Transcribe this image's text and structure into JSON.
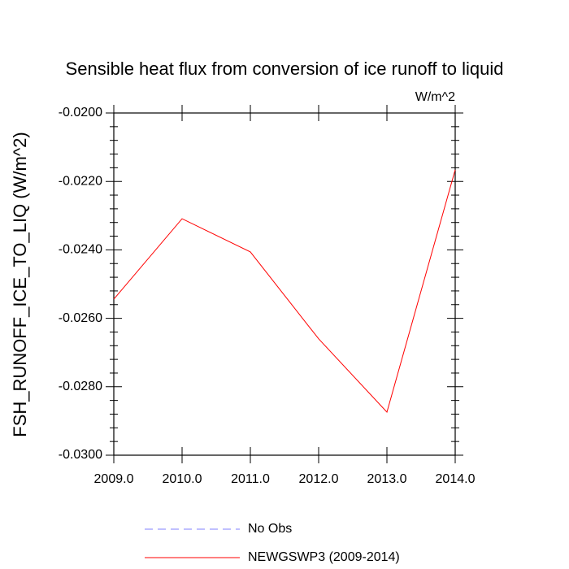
{
  "chart_data": {
    "type": "line",
    "title": "Sensible heat flux from conversion of ice runoff to liquid",
    "units": "W/m^2",
    "y_label": "FSH_RUNOFF_ICE_TO_LIQ  (W/m^2)",
    "x": [
      2009,
      2010,
      2011,
      2012,
      2013,
      2014
    ],
    "series": [
      {
        "name": "No Obs",
        "color": "#8080ff",
        "dash": "dashed",
        "values": [
          null,
          null,
          null,
          null,
          null,
          null
        ]
      },
      {
        "name": "NEWGSWP3 (2009-2014)",
        "color": "#ff0000",
        "dash": "solid",
        "values": [
          -0.02544,
          -0.02309,
          -0.02406,
          -0.0266,
          -0.02874,
          -0.02166
        ]
      }
    ],
    "xlim": [
      2009,
      2014
    ],
    "xticks": [
      {
        "value": 2009,
        "label": "2009.0"
      },
      {
        "value": 2010,
        "label": "2010.0"
      },
      {
        "value": 2011,
        "label": "2011.0"
      },
      {
        "value": 2012,
        "label": "2012.0"
      },
      {
        "value": 2013,
        "label": "2013.0"
      },
      {
        "value": 2014,
        "label": "2014.0"
      }
    ],
    "ylim": [
      -0.03,
      -0.02
    ],
    "yticks": [
      {
        "value": -0.03,
        "label": "-0.0300"
      },
      {
        "value": -0.028,
        "label": "-0.0280"
      },
      {
        "value": -0.026,
        "label": "-0.0260"
      },
      {
        "value": -0.024,
        "label": "-0.0240"
      },
      {
        "value": -0.022,
        "label": "-0.0220"
      },
      {
        "value": -0.02,
        "label": "-0.0200"
      }
    ],
    "grid": false
  }
}
